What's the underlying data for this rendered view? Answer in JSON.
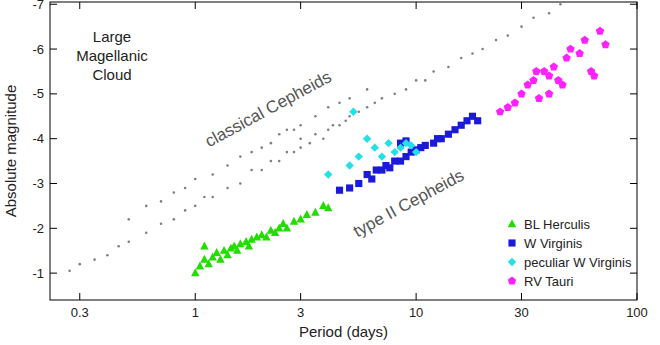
{
  "chart_data": {
    "type": "scatter",
    "x_label": "Period (days)",
    "y_label": "Absolute magnitude",
    "annotations": [
      "Large Magellanic Cloud",
      "type II Cepheids"
    ],
    "log": "x",
    "grid": false,
    "legend": "bottom right",
    "xlim": [
      0.22,
      100
    ],
    "xticks": [
      0.3,
      1,
      3,
      10,
      30,
      100
    ],
    "ylim": [
      -0.4,
      -7.05
    ],
    "yticks": [
      -1,
      -2,
      -3,
      -4,
      -5,
      -6,
      -7
    ],
    "series": [
      {
        "name": "classical Cepheids",
        "color": "#808080",
        "marker": "dot",
        "x": [
          0.27,
          0.3,
          0.35,
          0.4,
          0.45,
          0.5,
          0.6,
          0.7,
          0.8,
          0.9,
          1.0,
          1.1,
          1.2,
          1.4,
          1.6,
          1.8,
          2.0,
          2.2,
          2.4,
          2.6,
          2.8,
          3.0,
          3.0,
          3.3,
          3.5,
          3.8,
          4.0,
          4.2,
          4.5,
          4.8,
          5.0,
          5.5,
          6.0,
          6.5,
          7.0,
          8.0,
          9.0,
          10,
          11,
          12,
          14,
          16,
          18,
          20,
          23,
          26,
          30,
          34,
          40,
          45,
          0.5,
          0.6,
          0.7,
          0.8,
          0.9,
          1.0,
          1.2,
          1.4,
          1.6,
          1.8,
          2.0,
          2.2,
          2.4,
          2.6,
          2.8,
          3.0,
          3.5,
          4.0,
          4.5,
          5.0,
          6.0
        ],
        "values": [
          -1.05,
          -1.2,
          -1.3,
          -1.4,
          -1.6,
          -1.7,
          -1.9,
          -2.1,
          -2.2,
          -2.4,
          -2.5,
          -2.7,
          -2.7,
          -2.9,
          -3.0,
          -3.3,
          -3.3,
          -3.5,
          -3.5,
          -3.7,
          -3.7,
          -3.8,
          -4.0,
          -3.9,
          -4.1,
          -4.0,
          -4.2,
          -4.3,
          -4.3,
          -4.4,
          -4.5,
          -4.6,
          -4.7,
          -4.8,
          -4.9,
          -5.0,
          -5.1,
          -5.3,
          -5.3,
          -5.5,
          -5.6,
          -5.8,
          -5.9,
          -6.0,
          -6.2,
          -6.3,
          -6.5,
          -6.7,
          -6.8,
          -7.0,
          -2.2,
          -2.5,
          -2.6,
          -2.8,
          -2.9,
          -3.1,
          -3.2,
          -3.4,
          -3.6,
          -3.7,
          -3.8,
          -3.9,
          -4.1,
          -4.2,
          -4.2,
          -4.3,
          -4.5,
          -4.7,
          -4.8,
          -4.9,
          -5.1
        ]
      },
      {
        "name": "BL Herculis",
        "color": "#22dd00",
        "marker": "triangle",
        "x": [
          1.0,
          1.05,
          1.1,
          1.15,
          1.2,
          1.25,
          1.3,
          1.35,
          1.4,
          1.45,
          1.5,
          1.55,
          1.6,
          1.7,
          1.75,
          1.8,
          1.9,
          2.0,
          2.1,
          2.2,
          2.3,
          2.4,
          2.5,
          2.6,
          2.8,
          3.0,
          3.2,
          3.5,
          3.8,
          4.0,
          1.1
        ],
        "values": [
          -1.0,
          -1.15,
          -1.3,
          -1.2,
          -1.35,
          -1.45,
          -1.3,
          -1.5,
          -1.4,
          -1.55,
          -1.6,
          -1.5,
          -1.65,
          -1.7,
          -1.6,
          -1.75,
          -1.8,
          -1.85,
          -1.8,
          -1.95,
          -1.9,
          -2.0,
          -2.1,
          -2.0,
          -2.15,
          -2.2,
          -2.3,
          -2.35,
          -2.5,
          -2.45,
          -1.6
        ]
      },
      {
        "name": "W Virginis",
        "color": "#1a1ad8",
        "marker": "square",
        "x": [
          4.5,
          5.0,
          5.5,
          6.0,
          6.3,
          6.6,
          7.0,
          7.3,
          7.6,
          8.0,
          8.5,
          9.0,
          9.5,
          10,
          10.5,
          11,
          12,
          12.5,
          13,
          14,
          15,
          16,
          17,
          18,
          19,
          8.5,
          9
        ],
        "values": [
          -2.85,
          -2.9,
          -3.0,
          -3.2,
          -3.1,
          -3.3,
          -3.3,
          -3.4,
          -3.35,
          -3.5,
          -3.5,
          -3.6,
          -3.7,
          -3.75,
          -3.8,
          -3.85,
          -3.9,
          -4.0,
          -4.0,
          -4.1,
          -4.2,
          -4.3,
          -4.4,
          -4.5,
          -4.4,
          -3.9,
          -3.95
        ]
      },
      {
        "name": "peculiar W Virginis",
        "color": "#22e0e8",
        "marker": "diamond",
        "x": [
          4.0,
          5.0,
          5.2,
          5.5,
          6.0,
          6.5,
          7.0,
          8.0,
          8.5,
          9.0,
          9.5,
          10,
          7.5
        ],
        "values": [
          -3.2,
          -3.4,
          -4.6,
          -3.6,
          -4.0,
          -3.8,
          -3.6,
          -3.7,
          -3.8,
          -3.9,
          -3.85,
          -3.7,
          -3.9
        ]
      },
      {
        "name": "RV Tauri",
        "color": "#ff22ff",
        "marker": "pentagon",
        "x": [
          24,
          26,
          28,
          30,
          32,
          34,
          35,
          38,
          40,
          42,
          44,
          46,
          48,
          50,
          55,
          58,
          62,
          64,
          68,
          72,
          36,
          40
        ],
        "values": [
          -4.6,
          -4.7,
          -4.8,
          -5.0,
          -5.2,
          -5.3,
          -5.5,
          -5.5,
          -5.4,
          -5.6,
          -5.3,
          -5.2,
          -5.8,
          -6.0,
          -5.9,
          -6.2,
          -5.5,
          -5.4,
          -6.4,
          -6.1,
          -4.9,
          -5.0
        ]
      }
    ]
  }
}
